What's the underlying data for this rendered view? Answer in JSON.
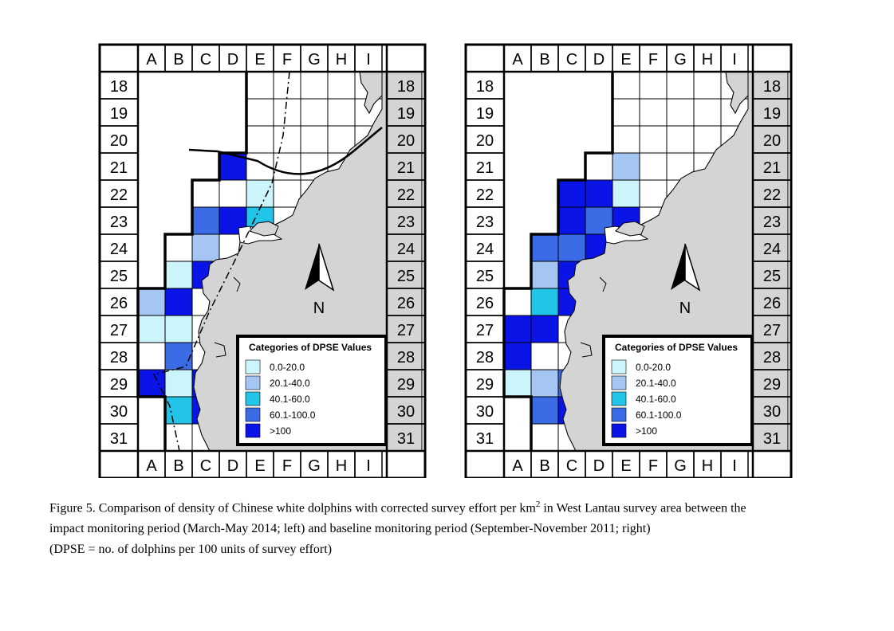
{
  "columns": [
    "A",
    "B",
    "C",
    "D",
    "E",
    "F",
    "G",
    "H",
    "I"
  ],
  "rows": [
    "18",
    "19",
    "20",
    "21",
    "22",
    "23",
    "24",
    "25",
    "26",
    "27",
    "28",
    "29",
    "30",
    "31"
  ],
  "north_label": "N",
  "legend": {
    "title": "Categories of DPSE Values",
    "entries": [
      {
        "label": "0.0-20.0",
        "color": "#ccf5fb"
      },
      {
        "label": "20.1-40.0",
        "color": "#a5c6f2"
      },
      {
        "label": "40.1-60.0",
        "color": "#22c4e8"
      },
      {
        "label": "60.1-100.0",
        "color": "#3b6ce6"
      },
      {
        "label": ">100",
        "color": "#0a14e6"
      }
    ]
  },
  "caption": {
    "line1_pre": "Figure 5.  Comparison of density of Chinese white dolphins with corrected survey effort per km",
    "sup": "2",
    "line1_post": " in West Lantau survey area between the",
    "line2": "impact monitoring period (March-May 2014; left) and baseline monitoring period (September-November 2011; right)",
    "line3": "(DPSE = no. of dolphins per 100 units of survey effort)"
  },
  "maps": [
    {
      "period": "impact monitoring period (March-May 2014)",
      "cells": [
        {
          "col": "D",
          "row": "21",
          "category": 5
        },
        {
          "col": "E",
          "row": "22",
          "category": 1
        },
        {
          "col": "C",
          "row": "23",
          "category": 4
        },
        {
          "col": "D",
          "row": "23",
          "category": 5
        },
        {
          "col": "E",
          "row": "23",
          "category": 3
        },
        {
          "col": "C",
          "row": "24",
          "category": 2
        },
        {
          "col": "B",
          "row": "25",
          "category": 1
        },
        {
          "col": "C",
          "row": "25",
          "category": 5
        },
        {
          "col": "A",
          "row": "26",
          "category": 2
        },
        {
          "col": "B",
          "row": "26",
          "category": 5
        },
        {
          "col": "A",
          "row": "27",
          "category": 1
        },
        {
          "col": "B",
          "row": "27",
          "category": 1
        },
        {
          "col": "B",
          "row": "28",
          "category": 4
        },
        {
          "col": "A",
          "row": "29",
          "category": 5
        },
        {
          "col": "B",
          "row": "29",
          "category": 1
        },
        {
          "col": "C",
          "row": "29",
          "category": 5
        },
        {
          "col": "B",
          "row": "30",
          "category": 3
        },
        {
          "col": "C",
          "row": "30",
          "category": 5
        }
      ]
    },
    {
      "period": "baseline monitoring period (September-November 2011)",
      "cells": [
        {
          "col": "E",
          "row": "21",
          "category": 2
        },
        {
          "col": "C",
          "row": "22",
          "category": 5
        },
        {
          "col": "D",
          "row": "22",
          "category": 5
        },
        {
          "col": "E",
          "row": "22",
          "category": 1
        },
        {
          "col": "C",
          "row": "23",
          "category": 5
        },
        {
          "col": "D",
          "row": "23",
          "category": 4
        },
        {
          "col": "E",
          "row": "23",
          "category": 5
        },
        {
          "col": "B",
          "row": "24",
          "category": 4
        },
        {
          "col": "C",
          "row": "24",
          "category": 4
        },
        {
          "col": "D",
          "row": "24",
          "category": 5
        },
        {
          "col": "B",
          "row": "25",
          "category": 2
        },
        {
          "col": "C",
          "row": "25",
          "category": 5
        },
        {
          "col": "B",
          "row": "26",
          "category": 3
        },
        {
          "col": "C",
          "row": "26",
          "category": 5
        },
        {
          "col": "A",
          "row": "27",
          "category": 5
        },
        {
          "col": "B",
          "row": "27",
          "category": 5
        },
        {
          "col": "A",
          "row": "28",
          "category": 5
        },
        {
          "col": "A",
          "row": "29",
          "category": 1
        },
        {
          "col": "B",
          "row": "29",
          "category": 2
        },
        {
          "col": "C",
          "row": "29",
          "category": 4
        },
        {
          "col": "B",
          "row": "30",
          "category": 4
        },
        {
          "col": "C",
          "row": "30",
          "category": 5
        }
      ]
    }
  ],
  "colors": {
    "land": "#d4d4d4",
    "grid": "#000000"
  }
}
